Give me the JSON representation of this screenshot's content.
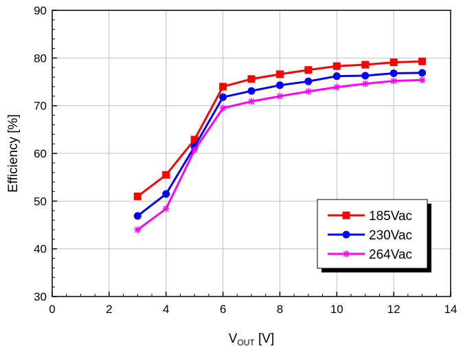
{
  "chart_data": {
    "type": "line",
    "title": "",
    "xlabel": "V",
    "xlabel_sub": "OUT",
    "xlabel_unit": " [V]",
    "ylabel": "Efficiency [%]",
    "xlim": [
      0,
      14
    ],
    "ylim": [
      30,
      90
    ],
    "xticks": [
      0,
      2,
      4,
      6,
      8,
      10,
      12,
      14
    ],
    "yticks": [
      30,
      40,
      50,
      60,
      70,
      80,
      90
    ],
    "grid": true,
    "legend_position": "bottom-right",
    "x": [
      3,
      4,
      5,
      6,
      7,
      8,
      9,
      10,
      11,
      12,
      13
    ],
    "series": [
      {
        "name": "185Vac",
        "color": "#ff0000",
        "marker": "square",
        "values": [
          51.0,
          55.5,
          62.9,
          74.0,
          75.6,
          76.6,
          77.5,
          78.3,
          78.6,
          79.1,
          79.3
        ]
      },
      {
        "name": "230Vac",
        "color": "#0000ff",
        "marker": "circle",
        "values": [
          46.9,
          51.5,
          61.4,
          71.8,
          73.1,
          74.3,
          75.1,
          76.2,
          76.3,
          76.8,
          76.9
        ]
      },
      {
        "name": "264Vac",
        "color": "#ff00ff",
        "marker": "star",
        "values": [
          44.0,
          48.4,
          60.7,
          69.5,
          70.9,
          72.0,
          73.0,
          73.9,
          74.6,
          75.2,
          75.4
        ]
      }
    ]
  }
}
